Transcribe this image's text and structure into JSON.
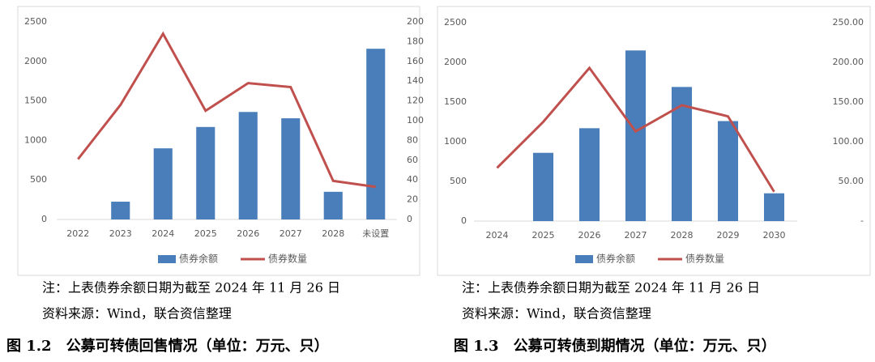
{
  "chart_data": [
    {
      "type": "combo",
      "categories": [
        "2022",
        "2023",
        "2024",
        "2025",
        "2026",
        "2027",
        "2028",
        "未设置"
      ],
      "series": [
        {
          "name": "债券余额",
          "type": "bar",
          "color": "#4a7ebb",
          "values": [
            0,
            225,
            900,
            1170,
            1360,
            1280,
            350,
            2160
          ]
        },
        {
          "name": "债券数量",
          "type": "line",
          "color": "#c0504d",
          "axis": "y2",
          "values": [
            61,
            116,
            188,
            110,
            138,
            134,
            39,
            33
          ]
        }
      ],
      "ylim": [
        0,
        2500
      ],
      "yticks": [
        0,
        500,
        1000,
        1500,
        2000,
        2500
      ],
      "y2lim": [
        0,
        200
      ],
      "y2ticks": [
        0,
        20,
        40,
        60,
        80,
        100,
        120,
        140,
        160,
        180,
        200
      ],
      "legend": "bottom",
      "notes": [
        "注：上表债券余额日期为截至 2024 年 11 月 26 日",
        "资料来源：Wind，联合资信整理"
      ],
      "caption": "图 1.2　公募可转债回售情况（单位：万元、只）"
    },
    {
      "type": "combo",
      "categories": [
        "2024",
        "2025",
        "2026",
        "2027",
        "2028",
        "2029",
        "2030"
      ],
      "series": [
        {
          "name": "债券余额",
          "type": "bar",
          "color": "#4a7ebb",
          "values": [
            0,
            860,
            1170,
            2150,
            1690,
            1260,
            350
          ]
        },
        {
          "name": "债券数量",
          "type": "line",
          "color": "#c0504d",
          "axis": "y2",
          "values": [
            67,
            125,
            193,
            113,
            146,
            132,
            37
          ]
        }
      ],
      "ylim": [
        0,
        2500
      ],
      "yticks": [
        0,
        500,
        1000,
        1500,
        2000,
        2500
      ],
      "y2lim": [
        0,
        250
      ],
      "y2ticks": [
        {
          "value": 0,
          "label": "-"
        },
        {
          "value": 50,
          "label": "50.00"
        },
        {
          "value": 100,
          "label": "100.00"
        },
        {
          "value": 150,
          "label": "150.00"
        },
        {
          "value": 200,
          "label": "200.00"
        },
        {
          "value": 250,
          "label": "250.00"
        }
      ],
      "legend": "bottom",
      "notes": [
        "注：上表债券余额日期为截至 2024 年 11 月 26 日",
        "资料来源：Wind，联合资信整理"
      ],
      "caption": "图 1.3　公募可转债到期情况（单位：万元、只）"
    }
  ]
}
